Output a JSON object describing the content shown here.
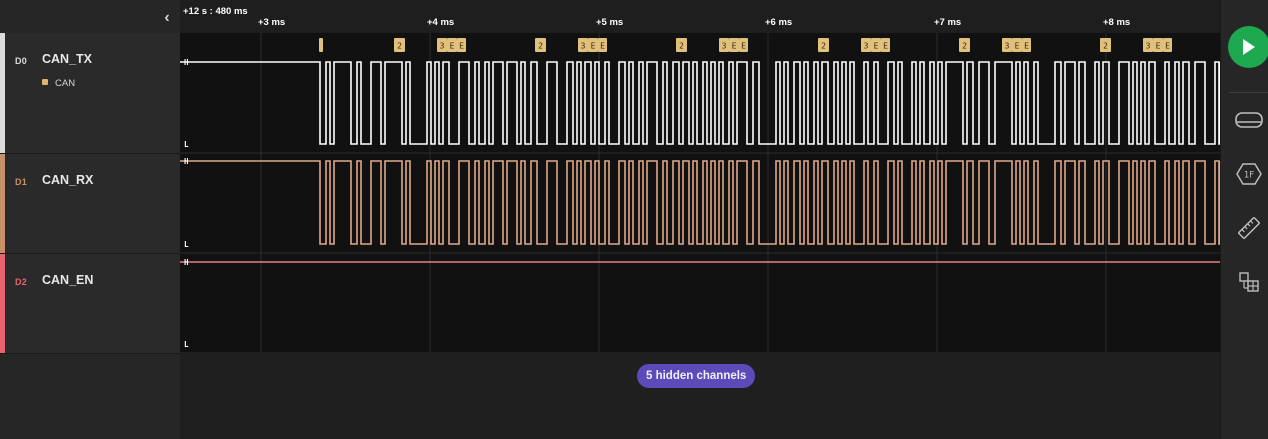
{
  "timeline": {
    "start_label": "+12 s : 480 ms",
    "tick_labels": [
      "+3 ms",
      "+4 ms",
      "+5 ms",
      "+6 ms",
      "+7 ms",
      "+8 ms"
    ]
  },
  "channels": [
    {
      "id": "D0",
      "name": "CAN_TX",
      "color": "#dcdcdc",
      "wave_color": "#ffffff",
      "analyzer": "CAN",
      "high_label": "H",
      "low_label": "L"
    },
    {
      "id": "D1",
      "name": "CAN_RX",
      "color": "#c8906a",
      "wave_color": "#e0a98a",
      "high_label": "H",
      "low_label": "L"
    },
    {
      "id": "D2",
      "name": "CAN_EN",
      "color": "#e8636b",
      "wave_color": "#ee7f85",
      "high_label": "H",
      "low_label": "L"
    }
  ],
  "can_frames": [
    {
      "labels": [
        "2",
        "3",
        "E",
        "E"
      ]
    },
    {
      "labels": [
        "2",
        "3",
        "E",
        "E"
      ]
    },
    {
      "labels": [
        "2",
        "3",
        "E",
        "E"
      ]
    },
    {
      "labels": [
        "2",
        "3",
        "E",
        "E"
      ]
    },
    {
      "labels": [
        "2",
        "3",
        "E",
        "E"
      ]
    },
    {
      "labels": [
        "2",
        "3",
        "E",
        "E"
      ]
    }
  ],
  "hidden_channels_label": "5 hidden channels",
  "toolbar": {
    "play": "play-icon",
    "tools": [
      "analyzers-icon",
      "hex-extensions-icon",
      "measure-ruler-icon",
      "layout-grid-icon"
    ]
  },
  "colors": {
    "accent_play": "#1ea84f",
    "pill": "#5b4ab8",
    "frame": "#e0c07a"
  }
}
